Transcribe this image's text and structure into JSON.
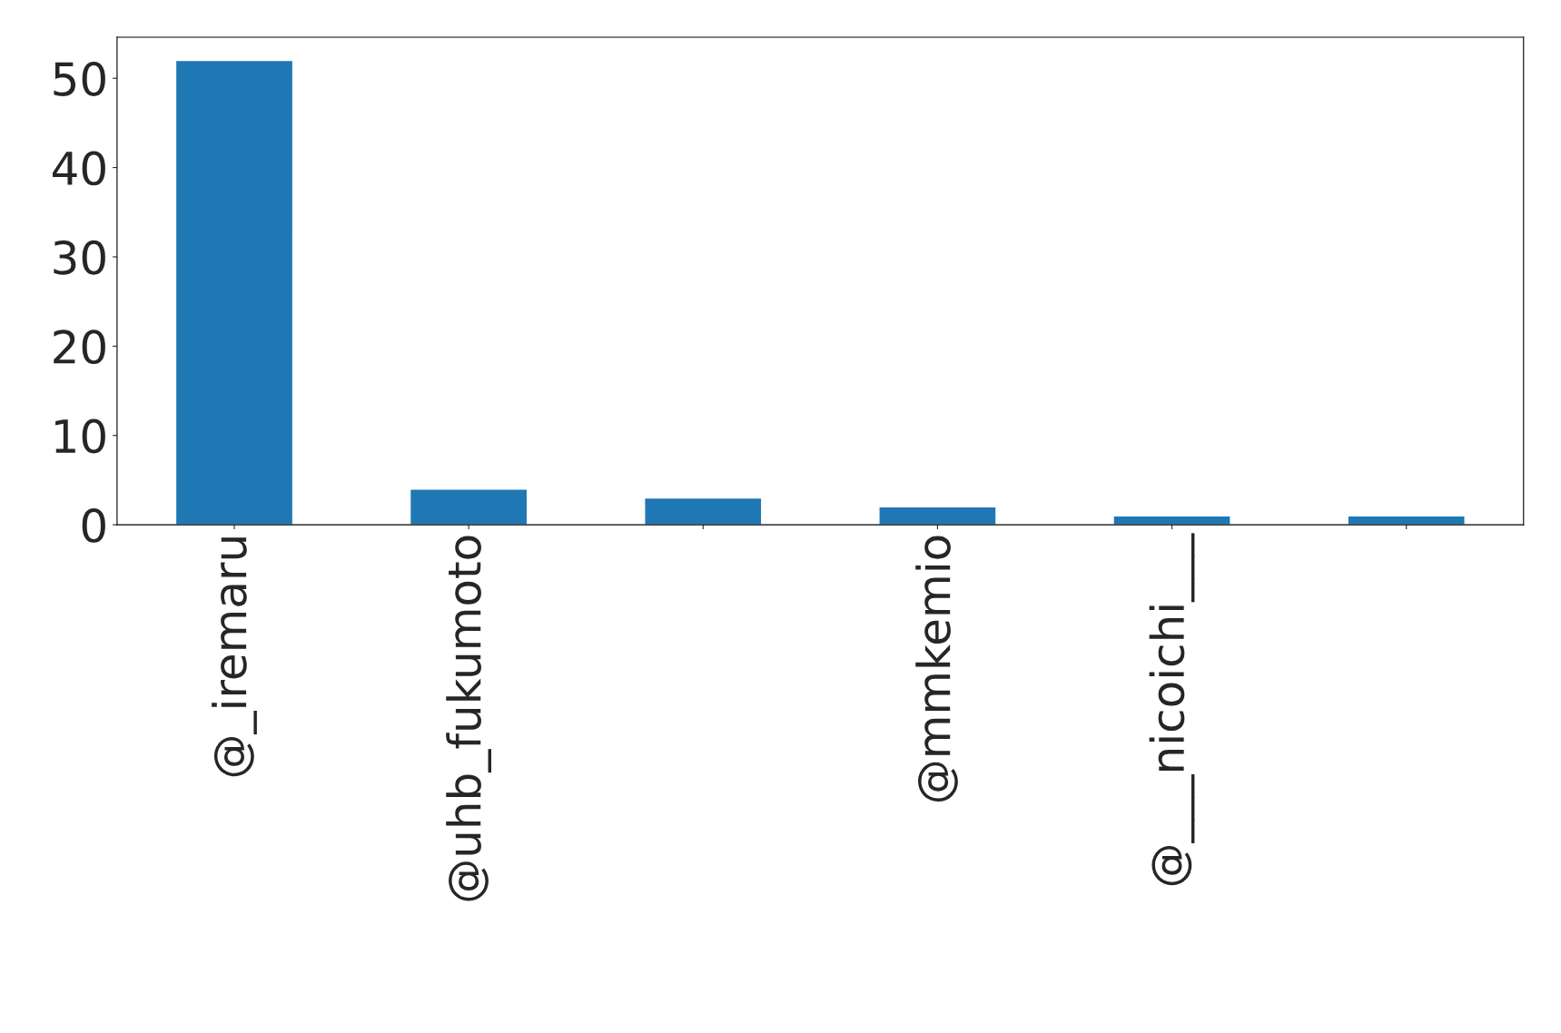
{
  "chart_data": {
    "type": "bar",
    "categories": [
      "@_iremaru",
      "@uhb_fukumoto",
      null,
      "@mmkemio",
      "@___nicoichi___",
      null
    ],
    "values": [
      52,
      4,
      3,
      2,
      1,
      1
    ],
    "color": "#1f77b4",
    "ylim": [
      0,
      54.6
    ],
    "yticks": [
      0,
      10,
      20,
      30,
      40,
      50
    ],
    "grid": false,
    "legend": false
  }
}
